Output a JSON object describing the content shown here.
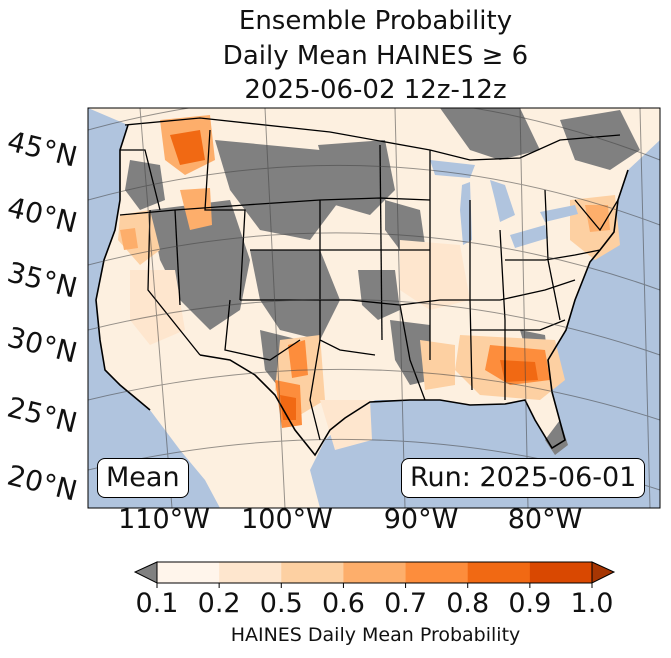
{
  "title": {
    "line1": "Ensemble Probability",
    "line2": "Daily Mean HAINES ≥ 6",
    "line3": "2025-06-02 12z-12z"
  },
  "latitude_labels": [
    "45°N",
    "40°N",
    "35°N",
    "30°N",
    "25°N",
    "20°N"
  ],
  "longitude_labels": [
    "110°W",
    "100°W",
    "90°W",
    "80°W"
  ],
  "mean_label": "Mean",
  "run_label": "Run: 2025-06-01",
  "colorbar": {
    "ticks": [
      "0.1",
      "0.2",
      "0.5",
      "0.6",
      "0.7",
      "0.8",
      "0.9",
      "1.0"
    ],
    "colors": [
      "#fff5eb",
      "#fee6ce",
      "#fdd0a2",
      "#fdae6b",
      "#fd8d3c",
      "#f16913",
      "#d94801",
      "#a63603"
    ],
    "label": "HAINES Daily Mean Probability"
  },
  "map_colors": {
    "ocean": "#b0c4de",
    "gray": "#808080",
    "land": "#fdf0e0"
  }
}
